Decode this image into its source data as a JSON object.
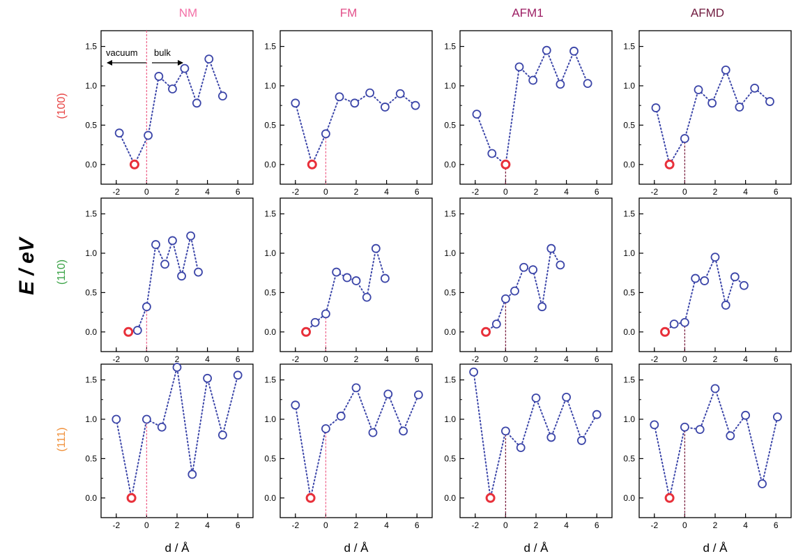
{
  "figure": {
    "ylabel": "E / eV",
    "xlabel": "d / Å",
    "column_titles": [
      "NM",
      "FM",
      "AFM1",
      "AFMD"
    ],
    "row_labels": [
      "(100)",
      "(110)",
      "(111)"
    ],
    "annotations": {
      "vacuum": "vacuum",
      "bulk": "bulk"
    },
    "colors": {
      "columns": [
        "#f36fa6",
        "#e24f8a",
        "#9c1d63",
        "#701a3e"
      ],
      "rows": [
        "#e84545",
        "#3aa346",
        "#f0903a"
      ],
      "markers": "#3b45a8",
      "min_marker": "#e8303a",
      "dotted_line": "#3b45a8",
      "zero_line_nm_fm": "#f06a8f",
      "zero_line_afm": "#7a1f3f"
    }
  },
  "chart_data": [
    {
      "type": "scatter",
      "row": "(100)",
      "column": "NM",
      "xlim": [
        -3,
        7
      ],
      "ylim": [
        -0.25,
        1.7
      ],
      "xticks": [
        "-2",
        "0",
        "2",
        "4",
        "6"
      ],
      "yticks": [
        "0.0",
        "0.5",
        "1.0",
        "1.5"
      ],
      "x": [
        -1.8,
        -0.8,
        0.1,
        0.8,
        1.7,
        2.5,
        3.3,
        4.1,
        5.0
      ],
      "y": [
        0.4,
        0.0,
        0.37,
        1.12,
        0.96,
        1.22,
        0.78,
        1.34,
        0.87
      ],
      "min_index": 1
    },
    {
      "type": "scatter",
      "row": "(100)",
      "column": "FM",
      "xlim": [
        -3,
        7
      ],
      "ylim": [
        -0.25,
        1.7
      ],
      "xticks": [
        "-2",
        "0",
        "2",
        "4",
        "6"
      ],
      "yticks": [
        "0.0",
        "0.5",
        "1.0",
        "1.5"
      ],
      "x": [
        -2.0,
        -0.9,
        0.0,
        0.9,
        1.9,
        2.9,
        3.9,
        4.9,
        5.9
      ],
      "y": [
        0.78,
        0.0,
        0.39,
        0.86,
        0.78,
        0.91,
        0.73,
        0.9,
        0.75
      ],
      "min_index": 1
    },
    {
      "type": "scatter",
      "row": "(100)",
      "column": "AFM1",
      "xlim": [
        -3,
        7
      ],
      "ylim": [
        -0.25,
        1.7
      ],
      "xticks": [
        "-2",
        "0",
        "2",
        "4",
        "6"
      ],
      "yticks": [
        "0.0",
        "0.5",
        "1.0",
        "1.5"
      ],
      "x": [
        -1.9,
        -0.9,
        0.0,
        0.9,
        1.8,
        2.7,
        3.6,
        4.5,
        5.4
      ],
      "y": [
        0.64,
        0.14,
        0.0,
        1.24,
        1.07,
        1.45,
        1.02,
        1.44,
        1.03
      ],
      "min_index": 2
    },
    {
      "type": "scatter",
      "row": "(100)",
      "column": "AFMD",
      "xlim": [
        -3,
        7
      ],
      "ylim": [
        -0.25,
        1.7
      ],
      "xticks": [
        "-2",
        "0",
        "2",
        "4",
        "6"
      ],
      "yticks": [
        "0.0",
        "0.5",
        "1.0",
        "1.5"
      ],
      "x": [
        -1.9,
        -1.0,
        0.0,
        0.9,
        1.8,
        2.7,
        3.6,
        4.6,
        5.6
      ],
      "y": [
        0.72,
        0.0,
        0.33,
        0.95,
        0.78,
        1.2,
        0.73,
        0.97,
        0.8
      ],
      "min_index": 1
    },
    {
      "type": "scatter",
      "row": "(110)",
      "column": "NM",
      "xlim": [
        -3,
        7
      ],
      "ylim": [
        -0.25,
        1.7
      ],
      "xticks": [
        "-2",
        "0",
        "2",
        "4",
        "6"
      ],
      "yticks": [
        "0.0",
        "0.5",
        "1.0",
        "1.5"
      ],
      "x": [
        -1.2,
        -0.6,
        0.0,
        0.6,
        1.2,
        1.7,
        2.3,
        2.9,
        3.4
      ],
      "y": [
        0.0,
        0.02,
        0.32,
        1.11,
        0.86,
        1.16,
        0.71,
        1.22,
        0.76
      ],
      "min_index": 0
    },
    {
      "type": "scatter",
      "row": "(110)",
      "column": "FM",
      "xlim": [
        -3,
        7
      ],
      "ylim": [
        -0.25,
        1.7
      ],
      "xticks": [
        "-2",
        "0",
        "2",
        "4",
        "6"
      ],
      "yticks": [
        "0.0",
        "0.5",
        "1.0",
        "1.5"
      ],
      "x": [
        -1.3,
        -0.7,
        0.0,
        0.7,
        1.4,
        2.0,
        2.7,
        3.3,
        3.9
      ],
      "y": [
        0.0,
        0.12,
        0.23,
        0.76,
        0.69,
        0.65,
        0.44,
        1.06,
        0.68
      ],
      "min_index": 0
    },
    {
      "type": "scatter",
      "row": "(110)",
      "column": "AFM1",
      "xlim": [
        -3,
        7
      ],
      "ylim": [
        -0.25,
        1.7
      ],
      "xticks": [
        "-2",
        "0",
        "2",
        "4",
        "6"
      ],
      "yticks": [
        "0.0",
        "0.5",
        "1.0",
        "1.5"
      ],
      "x": [
        -1.3,
        -0.6,
        0.0,
        0.6,
        1.2,
        1.8,
        2.4,
        3.0,
        3.6
      ],
      "y": [
        0.0,
        0.1,
        0.42,
        0.52,
        0.82,
        0.79,
        0.32,
        1.06,
        0.85
      ],
      "min_index": 0
    },
    {
      "type": "scatter",
      "row": "(110)",
      "column": "AFMD",
      "xlim": [
        -3,
        7
      ],
      "ylim": [
        -0.25,
        1.7
      ],
      "xticks": [
        "-2",
        "0",
        "2",
        "4",
        "6"
      ],
      "yticks": [
        "0.0",
        "0.5",
        "1.0",
        "1.5"
      ],
      "x": [
        -1.3,
        -0.7,
        0.0,
        0.7,
        1.3,
        2.0,
        2.7,
        3.3,
        3.9
      ],
      "y": [
        0.0,
        0.1,
        0.12,
        0.68,
        0.65,
        0.95,
        0.34,
        0.7,
        0.59
      ],
      "min_index": 0
    },
    {
      "type": "scatter",
      "row": "(111)",
      "column": "NM",
      "xlim": [
        -3,
        7
      ],
      "ylim": [
        -0.25,
        1.7
      ],
      "xticks": [
        "-2",
        "0",
        "2",
        "4",
        "6"
      ],
      "yticks": [
        "0.0",
        "0.5",
        "1.0",
        "1.5"
      ],
      "x": [
        -2.0,
        -1.0,
        0.0,
        1.0,
        2.0,
        3.0,
        4.0,
        5.0,
        6.0
      ],
      "y": [
        1.0,
        0.0,
        1.0,
        0.9,
        1.66,
        0.3,
        1.52,
        0.8,
        1.56
      ],
      "min_index": 1
    },
    {
      "type": "scatter",
      "row": "(111)",
      "column": "FM",
      "xlim": [
        -3,
        7
      ],
      "ylim": [
        -0.25,
        1.7
      ],
      "xticks": [
        "-2",
        "0",
        "2",
        "4",
        "6"
      ],
      "yticks": [
        "0.0",
        "0.5",
        "1.0",
        "1.5"
      ],
      "x": [
        -2.0,
        -1.0,
        0.0,
        1.0,
        2.0,
        3.1,
        4.1,
        5.1,
        6.1
      ],
      "y": [
        1.18,
        0.0,
        0.88,
        1.04,
        1.4,
        0.83,
        1.32,
        0.85,
        1.31
      ],
      "min_index": 1
    },
    {
      "type": "scatter",
      "row": "(111)",
      "column": "AFM1",
      "xlim": [
        -3,
        7
      ],
      "ylim": [
        -0.25,
        1.7
      ],
      "xticks": [
        "-2",
        "0",
        "2",
        "4",
        "6"
      ],
      "yticks": [
        "0.0",
        "0.5",
        "1.0",
        "1.5"
      ],
      "x": [
        -2.1,
        -1.0,
        0.0,
        1.0,
        2.0,
        3.0,
        4.0,
        5.0,
        6.0
      ],
      "y": [
        1.6,
        0.0,
        0.85,
        0.64,
        1.27,
        0.77,
        1.28,
        0.73,
        1.06
      ],
      "min_index": 1
    },
    {
      "type": "scatter",
      "row": "(111)",
      "column": "AFMD",
      "xlim": [
        -3,
        7
      ],
      "ylim": [
        -0.25,
        1.7
      ],
      "xticks": [
        "-2",
        "0",
        "2",
        "4",
        "6"
      ],
      "yticks": [
        "0.0",
        "0.5",
        "1.0",
        "1.5"
      ],
      "x": [
        -2.0,
        -1.0,
        0.0,
        1.0,
        2.0,
        3.0,
        4.0,
        5.1,
        6.1
      ],
      "y": [
        0.93,
        0.0,
        0.9,
        0.87,
        1.39,
        0.79,
        1.05,
        0.18,
        1.03
      ],
      "min_index": 1
    }
  ]
}
